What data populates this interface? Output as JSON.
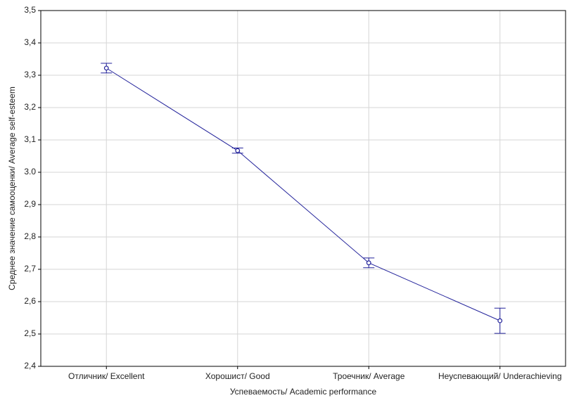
{
  "chart_data": {
    "type": "line",
    "x_label": "Успеваемость/ Academic performance",
    "y_label": "Среднее значение самооценки/ Average self-esteem",
    "categories": [
      "Отличник/ Excellent",
      "Хорошист/ Good",
      "Троечник/ Average",
      "Неуспевающий/ Underachieving"
    ],
    "series": [
      {
        "color": "#23239b",
        "values": [
          3.322,
          3.067,
          2.72,
          2.541
        ],
        "errors": [
          0.015,
          0.008,
          0.015,
          0.039
        ]
      }
    ],
    "ylim": [
      2.4,
      3.5
    ],
    "yticks": [
      {
        "value": 2.4,
        "label": "2,4"
      },
      {
        "value": 2.5,
        "label": "2,5"
      },
      {
        "value": 2.6,
        "label": "2,6"
      },
      {
        "value": 2.7,
        "label": "2,7"
      },
      {
        "value": 2.8,
        "label": "2,8"
      },
      {
        "value": 2.9,
        "label": "2,9"
      },
      {
        "value": 3.0,
        "label": "3.0"
      },
      {
        "value": 3.1,
        "label": "3,1"
      },
      {
        "value": 3.2,
        "label": "3,2"
      },
      {
        "value": 3.3,
        "label": "3,3"
      },
      {
        "value": 3.4,
        "label": "3,4"
      },
      {
        "value": 3.5,
        "label": "3,5"
      }
    ],
    "grid": true
  }
}
